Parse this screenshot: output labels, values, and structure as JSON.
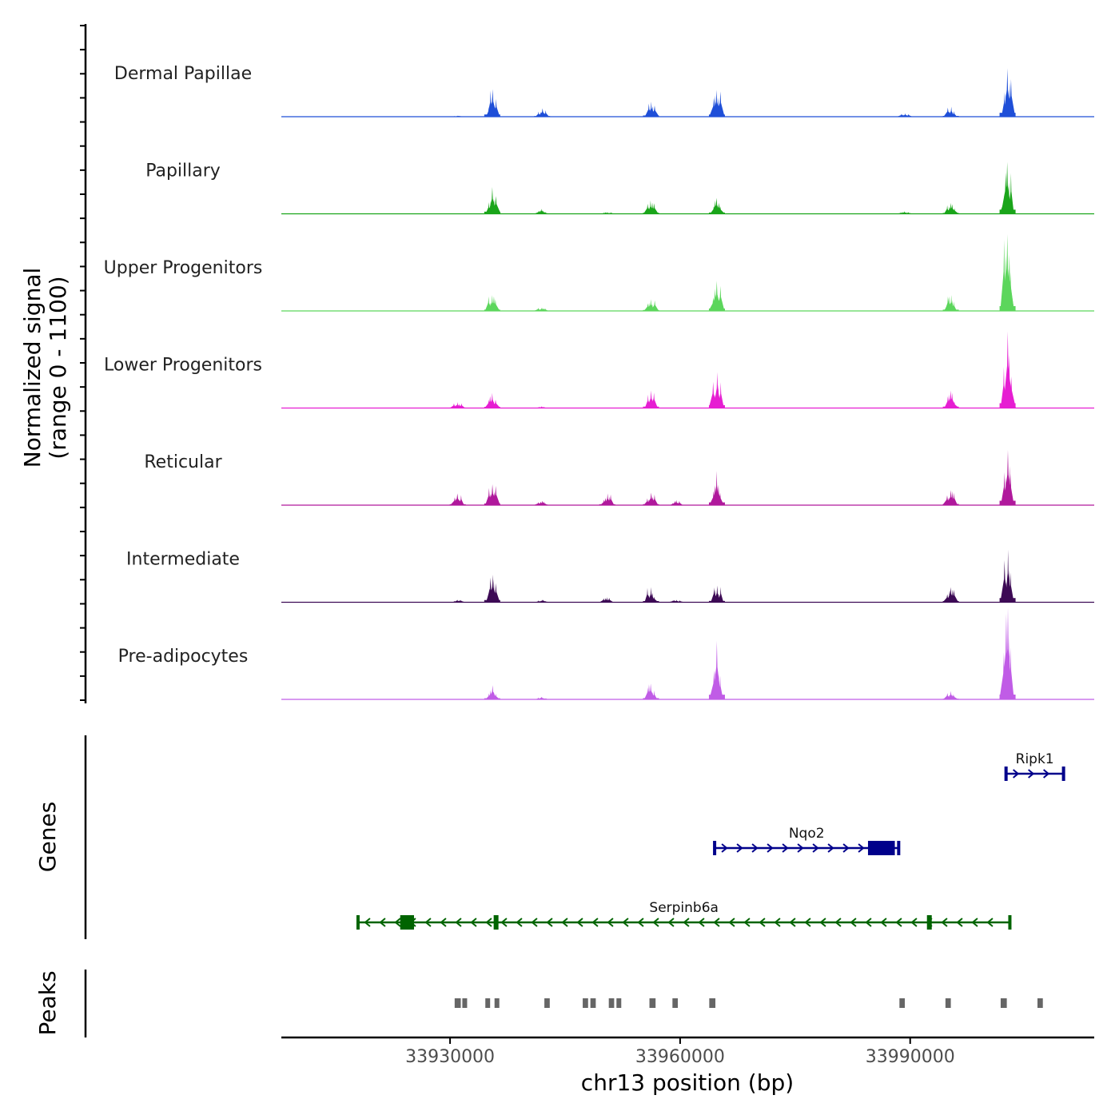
{
  "chart_data": {
    "type": "genome-browser",
    "chromosome": "chr13",
    "xlabel": "chr13 position (bp)",
    "xlim": [
      33908000,
      34014000
    ],
    "x_ticks": [
      33930000,
      33960000,
      33990000
    ],
    "x_tick_labels": [
      "33930000",
      "33960000",
      "33990000"
    ],
    "coverage": {
      "ylabel_line1": "Normalized signal",
      "ylabel_line2": "(range 0 - 1100)",
      "ylim": [
        0,
        1100
      ],
      "peak_centers": [
        33931000,
        33935500,
        33942000,
        33950500,
        33956200,
        33959500,
        33964800,
        33989300,
        33995300,
        34002700
      ],
      "tracks": [
        {
          "name": "Dermal Papillae",
          "color": "#1f4fd8",
          "heights": [
            12,
            330,
            100,
            0,
            180,
            0,
            320,
            40,
            120,
            580
          ]
        },
        {
          "name": "Papillary",
          "color": "#1aa51a",
          "heights": [
            0,
            320,
            60,
            20,
            160,
            0,
            190,
            30,
            130,
            620
          ]
        },
        {
          "name": "Upper Progenitors",
          "color": "#5cd65c",
          "heights": [
            0,
            190,
            40,
            0,
            140,
            0,
            360,
            0,
            190,
            920
          ]
        },
        {
          "name": "Lower Progenitors",
          "color": "#e61ed2",
          "heights": [
            70,
            180,
            20,
            0,
            210,
            0,
            430,
            0,
            210,
            920
          ]
        },
        {
          "name": "Reticular",
          "color": "#b0199c",
          "heights": [
            140,
            250,
            50,
            140,
            150,
            60,
            410,
            0,
            180,
            660
          ]
        },
        {
          "name": "Intermediate",
          "color": "#3d0a55",
          "heights": [
            30,
            330,
            30,
            60,
            180,
            30,
            200,
            0,
            180,
            630
          ]
        },
        {
          "name": "Pre-adipocytes",
          "color": "#c05ce6",
          "heights": [
            0,
            170,
            30,
            0,
            190,
            0,
            700,
            0,
            100,
            1100
          ]
        }
      ]
    },
    "genes": {
      "ylabel": "Genes",
      "items": [
        {
          "name": "Ripk1",
          "strand": "+",
          "start": 34002500,
          "end": 34010000,
          "color": "#00008b"
        },
        {
          "name": "Nqo2",
          "strand": "+",
          "start": 33964500,
          "end": 33988500,
          "color": "#00008b"
        },
        {
          "name": "Serpinb6a",
          "strand": "-",
          "start": 33918000,
          "end": 34003000,
          "color": "#006400"
        }
      ]
    },
    "peaks": {
      "ylabel": "Peaks",
      "color": "#666666",
      "regions": [
        [
          33930600,
          33931400
        ],
        [
          33931600,
          33932200
        ],
        [
          33934600,
          33935200
        ],
        [
          33935800,
          33936400
        ],
        [
          33942300,
          33943000
        ],
        [
          33947300,
          33948000
        ],
        [
          33948300,
          33949000
        ],
        [
          33950700,
          33951400
        ],
        [
          33951700,
          33952300
        ],
        [
          33956000,
          33956800
        ],
        [
          33959000,
          33959700
        ],
        [
          33963800,
          33964600
        ],
        [
          33988600,
          33989300
        ],
        [
          33994600,
          33995300
        ],
        [
          34001800,
          34002600
        ],
        [
          34006600,
          34007300
        ]
      ]
    }
  }
}
